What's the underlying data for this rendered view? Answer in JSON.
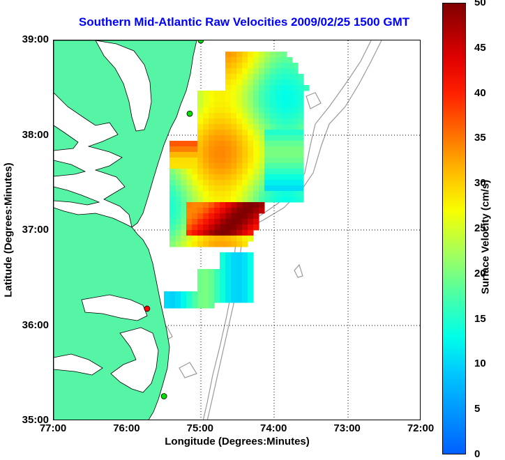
{
  "title": "Southern Mid-Atlantic Raw Velocities 2009/02/25 1500 GMT",
  "x_axis": {
    "label": "Longitude (Degrees:Minutes)",
    "ticks": [
      "77:00",
      "76:00",
      "75:00",
      "74:00",
      "73:00",
      "72:00"
    ]
  },
  "y_axis": {
    "label": "Latitude (Degrees:Minutes)",
    "ticks": [
      "39:00",
      "38:00",
      "37:00",
      "36:00",
      "35:00"
    ]
  },
  "colorbar": {
    "label": "Surface Velocity (cm/s)",
    "ticks": [
      "50",
      "45",
      "40",
      "35",
      "30",
      "25",
      "20",
      "15",
      "10",
      "5",
      "0"
    ],
    "range": [
      0,
      50
    ],
    "colors": [
      "#0060ff",
      "#00c8ff",
      "#00ffe8",
      "#40ffb0",
      "#a0ff60",
      "#f8ff00",
      "#ffc000",
      "#ff7800",
      "#ff2000",
      "#e00000",
      "#800000"
    ]
  },
  "map": {
    "lon_range": [
      -77,
      -72
    ],
    "lat_range": [
      35,
      39
    ],
    "land_color": "#55f5a5",
    "water_color": "#ffffff",
    "bathymetry_color": "#999999",
    "grid": "dotted",
    "station_markers": [
      {
        "lon": -75.0,
        "lat": 39.0,
        "color": "#00dd00"
      },
      {
        "lon": -75.15,
        "lat": 38.23,
        "color": "#00dd00"
      },
      {
        "lon": -75.73,
        "lat": 36.18,
        "color": "#ff0000"
      },
      {
        "lon": -75.5,
        "lat": 35.26,
        "color": "#00dd00"
      }
    ]
  }
}
